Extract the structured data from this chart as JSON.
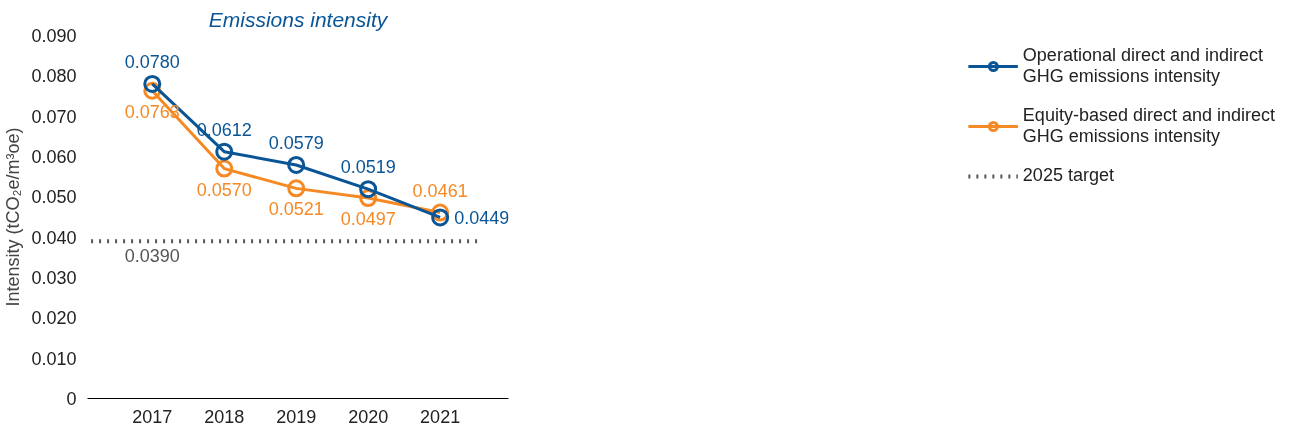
{
  "chart_data": {
    "type": "line",
    "title": "Emissions intensity",
    "ylabel": "Intensity (tCO₂e/m³oe)",
    "categories": [
      "2017",
      "2018",
      "2019",
      "2020",
      "2021"
    ],
    "series": [
      {
        "name": "Operational direct and indirect GHG emissions intensity",
        "color": "#0a5596",
        "values": [
          0.078,
          0.0612,
          0.0579,
          0.0519,
          0.0449
        ],
        "value_labels": [
          "0.0780",
          "0.0612",
          "0.0579",
          "0.0519",
          "0.0449"
        ]
      },
      {
        "name": "Equity-based direct and indirect GHG emissions intensity",
        "color": "#f58a25",
        "values": [
          0.0763,
          0.057,
          0.0521,
          0.0497,
          0.0461
        ],
        "value_labels": [
          "0.0763",
          "0.0570",
          "0.0521",
          "0.0497",
          "0.0461"
        ]
      }
    ],
    "ylim": [
      0,
      0.09
    ],
    "yticks": [
      {
        "value": 0,
        "label": "0"
      },
      {
        "value": 0.01,
        "label": "0.010"
      },
      {
        "value": 0.02,
        "label": "0.020"
      },
      {
        "value": 0.03,
        "label": "0.030"
      },
      {
        "value": 0.04,
        "label": "0.040"
      },
      {
        "value": 0.05,
        "label": "0.050"
      },
      {
        "value": 0.06,
        "label": "0.060"
      },
      {
        "value": 0.07,
        "label": "0.070"
      },
      {
        "value": 0.08,
        "label": "0.080"
      },
      {
        "value": 0.09,
        "label": "0.090"
      }
    ],
    "ref_lines": [
      {
        "axis": "y",
        "value": 0.039,
        "label": "2025 target",
        "color": "#555555",
        "line_style": "dotted"
      }
    ],
    "annotations": [
      {
        "text": "0.0390",
        "x": "2017",
        "y": 0.039
      }
    ],
    "data_labels": true,
    "marker": "circle",
    "line_style": "solid",
    "grid": false,
    "legend": "right"
  }
}
